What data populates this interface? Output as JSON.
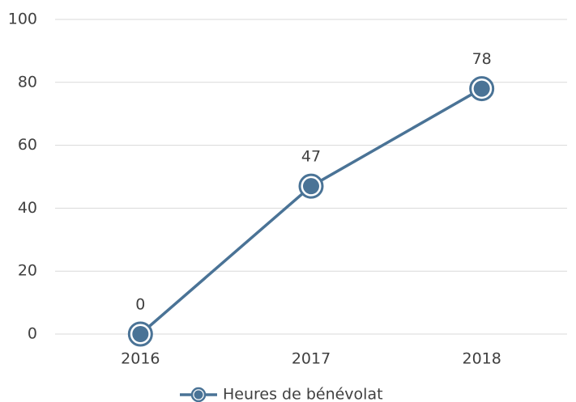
{
  "chart_data": {
    "type": "line",
    "categories": [
      "2016",
      "2017",
      "2018"
    ],
    "series": [
      {
        "name": "Heures de bénévolat",
        "color": "#4a7396",
        "values": [
          0,
          47,
          78
        ]
      }
    ],
    "ylim": [
      0,
      100
    ],
    "yticks": [
      0,
      20,
      40,
      60,
      80,
      100
    ],
    "grid": true,
    "legend": "bottom"
  }
}
